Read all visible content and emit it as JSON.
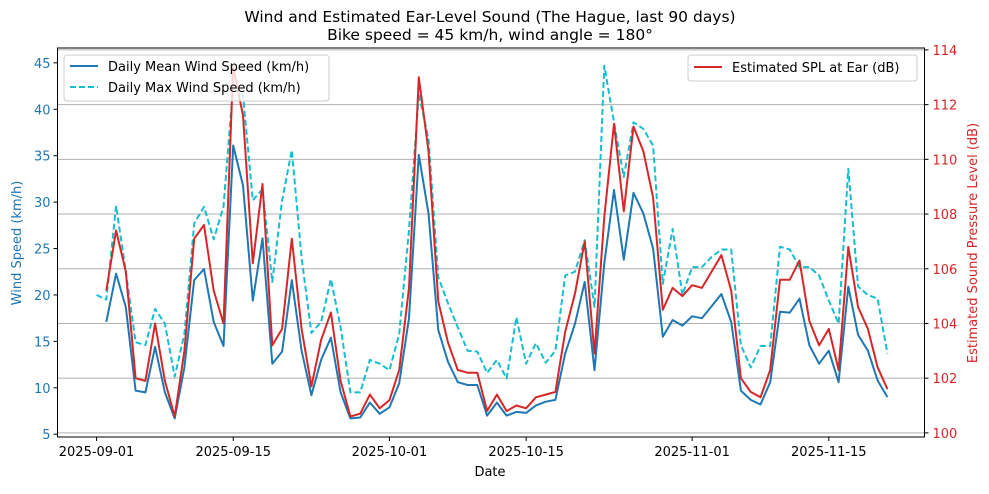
{
  "chart_data": {
    "type": "line",
    "title": "Wind and Estimated Ear-Level Sound (The Hague, last 90 days)",
    "subtitle": "Bike speed = 45 km/h, wind angle = 180°",
    "xlabel": "Date",
    "ylabel_left": "Wind Speed (km/h)",
    "ylabel_right": "Estimated Sound Pressure Level (dB)",
    "xlim": [
      "2025-08-28",
      "2025-11-24"
    ],
    "ylim_left": [
      4.7,
      46.6
    ],
    "ylim_right": [
      99.85,
      114.07
    ],
    "x_ticks": [
      "2025-09-01",
      "2025-09-15",
      "2025-10-01",
      "2025-10-15",
      "2025-11-01",
      "2025-11-15"
    ],
    "y_ticks_left": [
      5,
      10,
      15,
      20,
      25,
      30,
      35,
      40,
      45
    ],
    "y_ticks_right": [
      100,
      102,
      104,
      106,
      108,
      110,
      112,
      114
    ],
    "grid": "horizontal lines at right-axis ticks",
    "legend_left": "top-left",
    "legend_right": "top-right",
    "colors": {
      "mean": "#1f77b4",
      "max": "#17becf",
      "spl": "#d62728",
      "left_axis": "#1f77b4",
      "right_axis": "#d62728",
      "grid": "#b0b0b0"
    },
    "start_date": "2025-09-01",
    "series": [
      {
        "name": "Daily Mean Wind Speed (km/h)",
        "axis": "left",
        "style": "solid",
        "values": [
          null,
          17.1,
          22.3,
          18.7,
          9.7,
          9.5,
          14.4,
          9.5,
          6.7,
          12.2,
          21.6,
          22.8,
          17.1,
          14.5,
          36.1,
          31.8,
          19.4,
          26.1,
          12.6,
          13.9,
          21.6,
          14.0,
          9.2,
          13.0,
          15.4,
          9.5,
          6.7,
          6.8,
          8.4,
          7.2,
          7.9,
          10.5,
          17.5,
          35.1,
          28.8,
          16.2,
          12.8,
          10.6,
          10.3,
          10.3,
          7.0,
          8.4,
          7.0,
          7.4,
          7.3,
          8.1,
          8.5,
          8.7,
          13.7,
          16.9,
          21.4,
          11.9,
          23.4,
          31.3,
          23.8,
          31.0,
          28.8,
          25.0,
          15.5,
          17.3,
          16.7,
          17.7,
          17.5,
          18.8,
          20.1,
          17.1,
          9.7,
          8.7,
          8.2,
          10.6,
          18.2,
          18.1,
          19.6,
          14.6,
          12.6,
          14.0,
          10.6,
          20.9,
          15.7,
          14.0,
          10.8,
          9.0
        ]
      },
      {
        "name": "Daily Max Wind Speed (km/h)",
        "axis": "left",
        "style": "dashed",
        "values": [
          20.0,
          19.5,
          29.6,
          22.5,
          14.9,
          14.6,
          18.5,
          16.9,
          11.2,
          15.8,
          27.7,
          29.5,
          26.0,
          29.5,
          42.6,
          41.5,
          30.2,
          31.4,
          21.4,
          30.2,
          35.6,
          24.0,
          15.9,
          17.1,
          21.7,
          16.5,
          9.5,
          9.5,
          13.0,
          12.6,
          11.9,
          15.8,
          27.0,
          41.7,
          36.8,
          21.9,
          19.1,
          16.5,
          14.0,
          13.9,
          11.6,
          13.0,
          11.0,
          17.6,
          12.6,
          14.8,
          12.7,
          14.0,
          22.1,
          22.5,
          25.9,
          18.7,
          44.7,
          38.6,
          32.7,
          38.6,
          37.9,
          36.1,
          21.2,
          27.1,
          20.0,
          23.0,
          23.0,
          24.1,
          24.9,
          24.9,
          14.6,
          12.2,
          14.5,
          14.5,
          25.2,
          24.9,
          23.0,
          23.0,
          22.1,
          19.4,
          16.9,
          33.6,
          20.9,
          20.0,
          19.6,
          13.7
        ]
      },
      {
        "name": "Estimated SPL at Ear (dB)",
        "axis": "right",
        "style": "solid",
        "values": [
          null,
          105.2,
          107.4,
          105.9,
          102.0,
          101.9,
          104.0,
          101.9,
          100.6,
          103.0,
          107.1,
          107.6,
          105.2,
          104.0,
          113.4,
          111.6,
          106.2,
          109.1,
          103.2,
          103.8,
          107.1,
          103.8,
          101.7,
          103.4,
          104.4,
          101.9,
          100.6,
          100.7,
          101.4,
          100.9,
          101.2,
          102.3,
          105.3,
          113.0,
          110.3,
          104.8,
          103.3,
          102.3,
          102.2,
          102.2,
          100.8,
          101.4,
          100.8,
          101.0,
          100.9,
          101.3,
          101.4,
          101.5,
          103.7,
          105.1,
          107.0,
          102.9,
          107.9,
          111.3,
          108.1,
          111.2,
          110.3,
          108.6,
          104.5,
          105.3,
          105.0,
          105.4,
          105.3,
          105.9,
          106.5,
          105.2,
          102.0,
          101.5,
          101.3,
          102.3,
          105.6,
          105.6,
          106.3,
          104.1,
          103.2,
          103.8,
          102.3,
          106.8,
          104.6,
          103.8,
          102.4,
          101.6
        ]
      }
    ]
  }
}
